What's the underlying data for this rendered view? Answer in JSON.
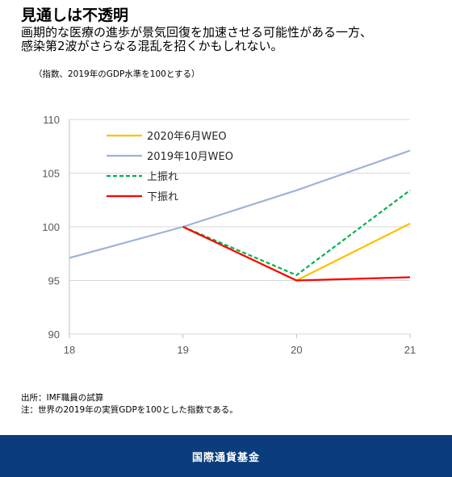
{
  "header": {
    "title": "見通しは不透明",
    "subtitle_line1": "画期的な医療の進歩が景気回復を加速させる可能性がある一方、",
    "subtitle_line2": "感染第2波がさらなる混乱を招くかもしれない。",
    "unit_note": "（指数、2019年のGDP水準を100とする）"
  },
  "chart_data": {
    "type": "line",
    "x": [
      18,
      19,
      20,
      21
    ],
    "xlim": [
      18,
      21
    ],
    "ylim": [
      90,
      110
    ],
    "xticks": [
      "18",
      "19",
      "20",
      "21"
    ],
    "yticks": [
      "90",
      "95",
      "100",
      "105",
      "110"
    ],
    "grid": "horizontal",
    "legend_position": "top-left",
    "series": [
      {
        "name": "2020年6月WEO",
        "color": "#ffc000",
        "dash": "solid",
        "x": [
          19,
          20,
          21
        ],
        "values": [
          100,
          95,
          100.3
        ]
      },
      {
        "name": "2019年10月WEO",
        "color": "#9db3d8",
        "dash": "solid",
        "x": [
          18,
          19,
          20,
          21
        ],
        "values": [
          97.1,
          100,
          103.4,
          107.1
        ]
      },
      {
        "name": "上振れ",
        "color": "#00b050",
        "dash": "dashed",
        "x": [
          19,
          20,
          21
        ],
        "values": [
          100,
          95.5,
          103.4
        ]
      },
      {
        "name": "下振れ",
        "color": "#ff0000",
        "dash": "solid",
        "x": [
          19,
          20,
          21
        ],
        "values": [
          100,
          95,
          95.3
        ]
      }
    ]
  },
  "footnotes": {
    "source": "出所：IMF職員の試算",
    "note": "注：世界の2019年の実質GDPを100とした指数である。"
  },
  "footer": {
    "org": "国際通貨基金"
  }
}
